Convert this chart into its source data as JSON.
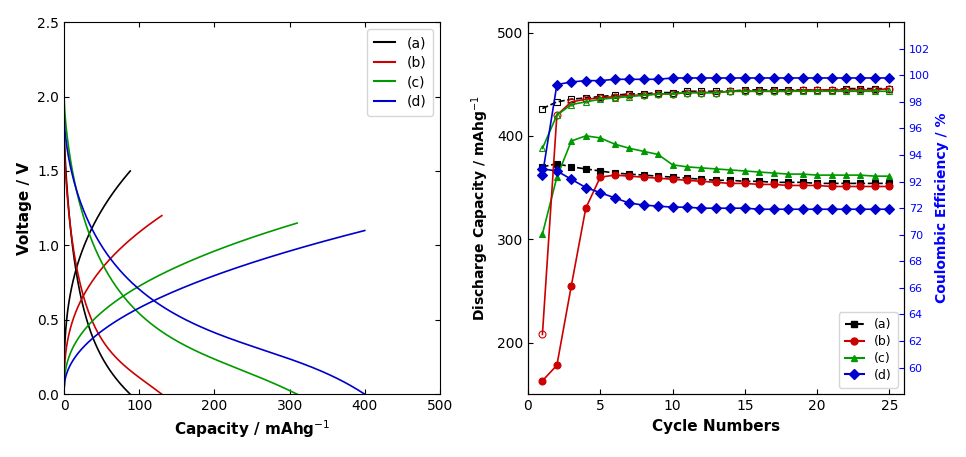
{
  "left_plot": {
    "xlabel": "Capacity / mAhg$^{-1}$",
    "ylabel": "Voltage / V",
    "xlim": [
      0,
      500
    ],
    "ylim": [
      0.0,
      2.5
    ],
    "xticks": [
      0,
      100,
      200,
      300,
      400,
      500
    ],
    "yticks": [
      0.0,
      0.5,
      1.0,
      1.5,
      2.0,
      2.5
    ],
    "legend_labels": [
      "(a)",
      "(b)",
      "(c)",
      "(d)"
    ],
    "legend_colors": [
      "#000000",
      "#cc0000",
      "#009900",
      "#0000cc"
    ]
  },
  "right_plot": {
    "xlabel": "Cycle Numbers",
    "ylabel_left": "Discharge Capacity / mAhg$^{-1}$",
    "ylabel_right": "Coulombic Efficiency / %",
    "xlim": [
      0,
      26
    ],
    "ylim_left": [
      150,
      510
    ],
    "xticks": [
      0,
      5,
      10,
      15,
      20,
      25
    ],
    "yticks_left": [
      200,
      300,
      400,
      500
    ],
    "right_ytick_positions": [
      60,
      62,
      64,
      66,
      68,
      70,
      72,
      74,
      76,
      78,
      80,
      82,
      84
    ],
    "right_ytick_labels": [
      "60",
      "62",
      "64",
      "66",
      "68",
      "70",
      "72",
      "92",
      "94",
      "96",
      "98",
      "100",
      "102"
    ],
    "right_ylim": [
      58,
      86
    ],
    "series": {
      "a_discharge": {
        "color": "#000000",
        "marker": "s",
        "linestyle": "--",
        "cycles": [
          1,
          2,
          3,
          4,
          5,
          6,
          7,
          8,
          9,
          10,
          11,
          12,
          13,
          14,
          15,
          16,
          17,
          18,
          19,
          20,
          21,
          22,
          23,
          24,
          25
        ],
        "values": [
          370,
          373,
          370,
          368,
          366,
          364,
          363,
          362,
          361,
          360,
          359,
          358,
          357,
          357,
          356,
          356,
          355,
          355,
          355,
          354,
          354,
          354,
          354,
          354,
          354
        ]
      },
      "b_discharge": {
        "color": "#cc0000",
        "marker": "o",
        "linestyle": "-",
        "cycles": [
          1,
          2,
          3,
          4,
          5,
          6,
          7,
          8,
          9,
          10,
          11,
          12,
          13,
          14,
          15,
          16,
          17,
          18,
          19,
          20,
          21,
          22,
          23,
          24,
          25
        ],
        "values": [
          163,
          178,
          255,
          330,
          360,
          362,
          361,
          360,
          359,
          358,
          357,
          356,
          355,
          354,
          354,
          353,
          353,
          352,
          352,
          352,
          351,
          351,
          351,
          351,
          351
        ]
      },
      "c_discharge": {
        "color": "#009900",
        "marker": "^",
        "linestyle": "-",
        "cycles": [
          1,
          2,
          3,
          4,
          5,
          6,
          7,
          8,
          9,
          10,
          11,
          12,
          13,
          14,
          15,
          16,
          17,
          18,
          19,
          20,
          21,
          22,
          23,
          24,
          25
        ],
        "values": [
          305,
          360,
          395,
          400,
          398,
          392,
          388,
          385,
          382,
          372,
          370,
          369,
          368,
          367,
          366,
          365,
          364,
          363,
          363,
          362,
          362,
          362,
          362,
          361,
          361
        ]
      },
      "d_discharge": {
        "color": "#0000cc",
        "marker": "D",
        "linestyle": "-",
        "cycles": [
          1,
          2,
          3,
          4,
          5,
          6,
          7,
          8,
          9,
          10,
          11,
          12,
          13,
          14,
          15,
          16,
          17,
          18,
          19,
          20,
          21,
          22,
          23,
          24,
          25
        ],
        "values": [
          368,
          366,
          358,
          350,
          345,
          340,
          335,
          333,
          332,
          331,
          331,
          330,
          330,
          330,
          330,
          329,
          329,
          329,
          329,
          329,
          329,
          329,
          329,
          329,
          329
        ]
      },
      "ce_a": {
        "color": "#000000",
        "marker": "s",
        "filled": false,
        "linestyle": "--",
        "cycles": [
          1,
          2,
          3,
          4,
          5,
          6,
          7,
          8,
          9,
          10,
          11,
          12,
          13,
          14,
          15,
          16,
          17,
          18,
          19,
          20,
          21,
          22,
          23,
          24,
          25
        ],
        "values": [
          97.5,
          98.0,
          98.2,
          98.3,
          98.4,
          98.5,
          98.6,
          98.6,
          98.7,
          98.7,
          98.8,
          98.8,
          98.8,
          98.8,
          98.9,
          98.9,
          98.9,
          98.9,
          98.9,
          98.9,
          98.9,
          99.0,
          99.0,
          99.0,
          99.0
        ]
      },
      "ce_b": {
        "color": "#cc0000",
        "marker": "o",
        "filled": false,
        "linestyle": "-",
        "cycles": [
          1,
          2,
          3,
          4,
          5,
          6,
          7,
          8,
          9,
          10,
          11,
          12,
          13,
          14,
          15,
          16,
          17,
          18,
          19,
          20,
          21,
          22,
          23,
          24,
          25
        ],
        "values": [
          62.5,
          97.0,
          98.0,
          98.2,
          98.3,
          98.4,
          98.5,
          98.5,
          98.6,
          98.6,
          98.7,
          98.7,
          98.7,
          98.8,
          98.8,
          98.8,
          98.8,
          98.8,
          98.9,
          98.9,
          98.9,
          98.9,
          98.9,
          98.9,
          99.0
        ]
      },
      "ce_c": {
        "color": "#009900",
        "marker": "^",
        "filled": false,
        "linestyle": "-",
        "cycles": [
          1,
          2,
          3,
          4,
          5,
          6,
          7,
          8,
          9,
          10,
          11,
          12,
          13,
          14,
          15,
          16,
          17,
          18,
          19,
          20,
          21,
          22,
          23,
          24,
          25
        ],
        "values": [
          94.5,
          97.0,
          97.8,
          98.0,
          98.2,
          98.3,
          98.4,
          98.5,
          98.6,
          98.6,
          98.7,
          98.7,
          98.7,
          98.8,
          98.8,
          98.8,
          98.8,
          98.8,
          98.8,
          98.8,
          98.8,
          98.8,
          98.8,
          98.8,
          98.8
        ]
      },
      "ce_d": {
        "color": "#0000cc",
        "marker": "D",
        "filled": true,
        "linestyle": "-",
        "cycles": [
          1,
          2,
          3,
          4,
          5,
          6,
          7,
          8,
          9,
          10,
          11,
          12,
          13,
          14,
          15,
          16,
          17,
          18,
          19,
          20,
          21,
          22,
          23,
          24,
          25
        ],
        "values": [
          92.5,
          99.3,
          99.5,
          99.6,
          99.6,
          99.7,
          99.7,
          99.7,
          99.7,
          99.8,
          99.8,
          99.8,
          99.8,
          99.8,
          99.8,
          99.8,
          99.8,
          99.8,
          99.8,
          99.8,
          99.8,
          99.8,
          99.8,
          99.8,
          99.8
        ]
      }
    }
  }
}
